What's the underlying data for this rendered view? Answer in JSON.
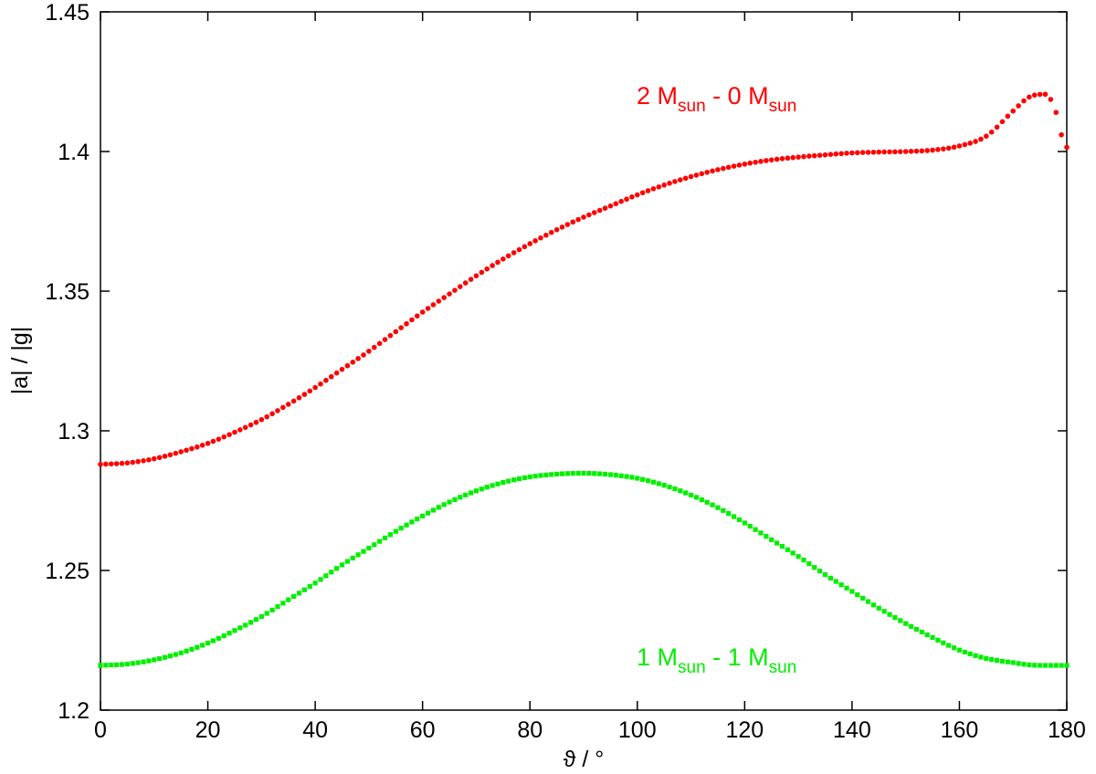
{
  "chart_data": {
    "type": "scatter",
    "title": "",
    "xlabel": "ϑ / °",
    "ylabel": "|a| / |g|",
    "xlim": [
      0,
      180
    ],
    "ylim": [
      1.2,
      1.45
    ],
    "x_ticks": [
      0,
      20,
      40,
      60,
      80,
      100,
      120,
      140,
      160,
      180
    ],
    "x_tick_labels": [
      "0",
      "20",
      "40",
      "60",
      "80",
      "100",
      "120",
      "140",
      "160",
      "180"
    ],
    "y_ticks": [
      1.2,
      1.25,
      1.3,
      1.35,
      1.4,
      1.45
    ],
    "y_tick_labels": [
      "1.2",
      "1.25",
      "1.3",
      "1.35",
      "1.4",
      "1.45"
    ],
    "grid": false,
    "legend": "none",
    "x": [
      0,
      5,
      10,
      15,
      20,
      25,
      30,
      35,
      40,
      45,
      50,
      55,
      60,
      65,
      70,
      75,
      80,
      85,
      90,
      95,
      100,
      105,
      110,
      115,
      120,
      125,
      130,
      135,
      140,
      145,
      150,
      155,
      160,
      165,
      170,
      173,
      176,
      178,
      179,
      180
    ],
    "series": [
      {
        "name": "2 M_sun - 0 M_sun",
        "color": "#ff0000",
        "marker": "circle",
        "values": [
          1.288,
          1.2885,
          1.29,
          1.2925,
          1.2955,
          1.2995,
          1.304,
          1.3095,
          1.3155,
          1.322,
          1.3285,
          1.3355,
          1.3425,
          1.349,
          1.3555,
          1.3615,
          1.367,
          1.372,
          1.3765,
          1.3805,
          1.3845,
          1.388,
          1.391,
          1.3935,
          1.3955,
          1.397,
          1.398,
          1.3988,
          1.3995,
          1.3998,
          1.4,
          1.4005,
          1.402,
          1.4055,
          1.4145,
          1.4195,
          1.4205,
          1.414,
          1.406,
          1.4015
        ]
      },
      {
        "name": "1 M_sun - 1 M_sun",
        "color": "#00ee00",
        "marker": "square",
        "values": [
          1.216,
          1.2165,
          1.218,
          1.2205,
          1.224,
          1.2285,
          1.2335,
          1.2395,
          1.2455,
          1.252,
          1.258,
          1.264,
          1.2695,
          1.2745,
          1.2785,
          1.2815,
          1.2835,
          1.2845,
          1.2848,
          1.2843,
          1.283,
          1.2805,
          1.277,
          1.2725,
          1.267,
          1.261,
          1.255,
          1.2485,
          1.2425,
          1.2365,
          1.231,
          1.226,
          1.2215,
          1.2185,
          1.217,
          1.2162,
          1.216,
          1.216,
          1.216,
          1.216
        ]
      }
    ],
    "annotations": [
      {
        "main": "2 M",
        "sub": "sun",
        "mid": " - 0 M",
        "sub2": "sun",
        "color": "#ff0000"
      },
      {
        "main": "1 M",
        "sub": "sun",
        "mid": " - 1 M",
        "sub2": "sun",
        "color": "#00ee00"
      }
    ]
  }
}
